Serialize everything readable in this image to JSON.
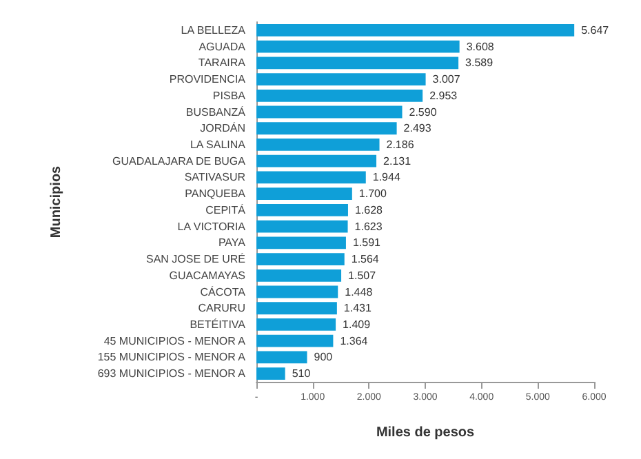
{
  "chart_data": {
    "type": "bar",
    "orientation": "horizontal",
    "xlabel": "Miles de pesos",
    "ylabel": "Municipios",
    "categories": [
      "LA BELLEZA",
      "AGUADA",
      "TARAIRA",
      "PROVIDENCIA",
      "PISBA",
      "BUSBANZÁ",
      "JORDÁN",
      "LA SALINA",
      "GUADALAJARA DE BUGA",
      "SATIVASUR",
      "PANQUEBA",
      "CEPITÁ",
      "LA VICTORIA",
      "PAYA",
      "SAN JOSE DE URÉ",
      "GUACAMAYAS",
      "CÁCOTA",
      "CARURU",
      "BETÉITIVA",
      "45 MUNICIPIOS - MENOR A",
      "155 MUNICIPIOS - MENOR A",
      "693 MUNICIPIOS - MENOR A"
    ],
    "values": [
      5647,
      3608,
      3589,
      3007,
      2953,
      2590,
      2493,
      2186,
      2131,
      1944,
      1700,
      1628,
      1623,
      1591,
      1564,
      1507,
      1448,
      1431,
      1409,
      1364,
      900,
      510
    ],
    "value_labels": [
      "5.647",
      "3.608",
      "3.589",
      "3.007",
      "2.953",
      "2.590",
      "2.493",
      "2.186",
      "2.131",
      "1.944",
      "1.700",
      "1.628",
      "1.623",
      "1.591",
      "1.564",
      "1.507",
      "1.448",
      "1.431",
      "1.409",
      "1.364",
      "900",
      "510"
    ],
    "color": "#0f9fd8",
    "xlim": [
      0,
      6000
    ],
    "xticks": [
      {
        "value": 0,
        "label": "-"
      },
      {
        "value": 1000,
        "label": "1.000"
      },
      {
        "value": 2000,
        "label": "2.000"
      },
      {
        "value": 3000,
        "label": "3.000"
      },
      {
        "value": 4000,
        "label": "4.000"
      },
      {
        "value": 5000,
        "label": "5.000"
      },
      {
        "value": 6000,
        "label": "6.000"
      }
    ],
    "grid": false
  }
}
